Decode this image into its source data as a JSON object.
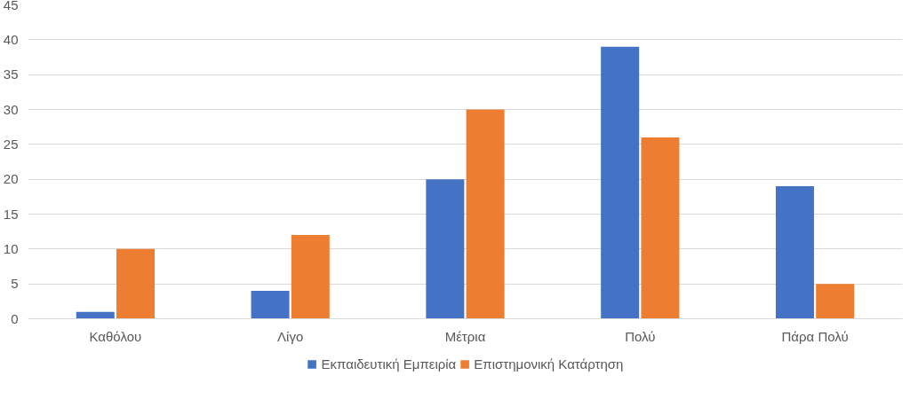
{
  "chart_data": {
    "type": "bar",
    "categories": [
      "Καθόλου",
      "Λίγο",
      "Μέτρια",
      "Πολύ",
      "Πάρα Πολύ"
    ],
    "series": [
      {
        "name": "Εκπαιδευτική Εμπειρία",
        "color": "#4472c4",
        "values": [
          1,
          4,
          20,
          39,
          19
        ]
      },
      {
        "name": "Επιστημονική Κατάρτηση",
        "color": "#ed7d31",
        "values": [
          10,
          12,
          30,
          26,
          5
        ]
      }
    ],
    "ylim": [
      0,
      45
    ],
    "yticks": [
      0,
      5,
      10,
      15,
      20,
      25,
      30,
      35,
      40,
      45
    ],
    "grid": "y",
    "legend": "bottom"
  }
}
